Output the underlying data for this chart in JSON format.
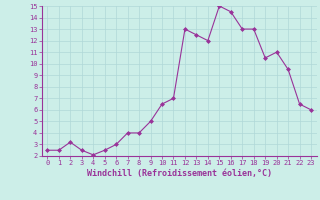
{
  "x": [
    0,
    1,
    2,
    3,
    4,
    5,
    6,
    7,
    8,
    9,
    10,
    11,
    12,
    13,
    14,
    15,
    16,
    17,
    18,
    19,
    20,
    21,
    22,
    23
  ],
  "y": [
    2.5,
    2.5,
    3.2,
    2.5,
    2.1,
    2.5,
    3.0,
    4.0,
    4.0,
    5.0,
    6.5,
    7.0,
    13.0,
    12.5,
    12.0,
    15.0,
    14.5,
    13.0,
    13.0,
    10.5,
    11.0,
    9.5,
    6.5,
    6.0
  ],
  "line_color": "#993399",
  "marker": "D",
  "marker_size": 2,
  "bg_color": "#cceee8",
  "grid_color": "#b0d8d8",
  "xlabel": "Windchill (Refroidissement éolien,°C)",
  "xlabel_color": "#993399",
  "tick_color": "#993399",
  "ylim": [
    2,
    15
  ],
  "xlim": [
    -0.5,
    23.5
  ],
  "yticks": [
    2,
    3,
    4,
    5,
    6,
    7,
    8,
    9,
    10,
    11,
    12,
    13,
    14,
    15
  ],
  "xticks": [
    0,
    1,
    2,
    3,
    4,
    5,
    6,
    7,
    8,
    9,
    10,
    11,
    12,
    13,
    14,
    15,
    16,
    17,
    18,
    19,
    20,
    21,
    22,
    23
  ],
  "label_fontsize": 6.0,
  "tick_fontsize": 5.0
}
